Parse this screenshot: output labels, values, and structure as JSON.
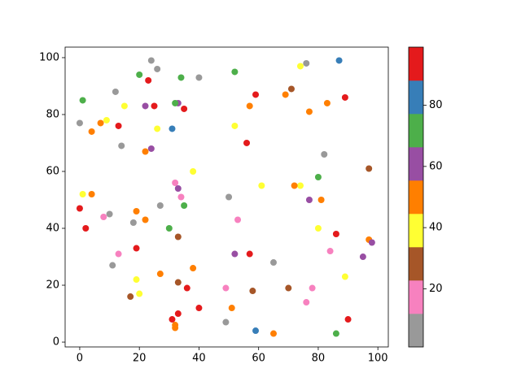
{
  "chart_data": {
    "type": "scatter",
    "x": [
      24,
      26,
      40,
      76,
      12,
      0,
      14,
      82,
      27,
      10,
      18,
      50,
      11,
      65,
      49,
      32,
      34,
      8,
      53,
      13,
      49,
      78,
      76,
      84,
      71,
      97,
      33,
      33,
      17,
      58,
      70,
      74,
      15,
      26,
      52,
      9,
      38,
      61,
      74,
      1,
      80,
      19,
      20,
      89,
      69,
      57,
      77,
      83,
      7,
      4,
      22,
      72,
      4,
      81,
      19,
      22,
      97,
      38,
      27,
      32,
      32,
      51,
      65,
      22,
      33,
      24,
      33,
      77,
      52,
      95,
      98,
      1,
      20,
      34,
      52,
      32,
      80,
      35,
      30,
      86,
      87,
      31,
      59,
      23,
      59,
      89,
      25,
      35,
      13,
      56,
      0,
      2,
      86,
      19,
      57,
      36,
      40,
      33,
      31,
      90
    ],
    "y": [
      99,
      96,
      93,
      98,
      88,
      77,
      69,
      66,
      48,
      45,
      42,
      51,
      27,
      28,
      7,
      56,
      51,
      44,
      43,
      31,
      19,
      19,
      14,
      32,
      89,
      61,
      37,
      21,
      16,
      18,
      19,
      97,
      83,
      75,
      76,
      78,
      60,
      55,
      55,
      52,
      40,
      22,
      17,
      23,
      87,
      83,
      81,
      84,
      77,
      74,
      67,
      55,
      52,
      50,
      46,
      43,
      36,
      26,
      24,
      6,
      5,
      12,
      3,
      83,
      84,
      68,
      54,
      50,
      31,
      30,
      35,
      85,
      94,
      93,
      95,
      84,
      58,
      48,
      40,
      3,
      99,
      75,
      4,
      92,
      87,
      86,
      83,
      82,
      76,
      70,
      47,
      40,
      38,
      33,
      31,
      19,
      12,
      10,
      8,
      8
    ],
    "c": [
      6,
      6,
      6,
      6,
      6,
      6,
      6,
      6,
      6,
      6,
      6,
      6,
      6,
      6,
      6,
      17,
      17,
      17,
      17,
      17,
      17,
      17,
      17,
      17,
      28,
      28,
      28,
      28,
      28,
      28,
      28,
      39,
      39,
      39,
      39,
      39,
      39,
      39,
      39,
      39,
      39,
      39,
      39,
      39,
      50,
      50,
      50,
      50,
      50,
      50,
      50,
      50,
      50,
      50,
      50,
      50,
      50,
      50,
      50,
      50,
      50,
      50,
      50,
      61,
      61,
      61,
      61,
      61,
      61,
      61,
      61,
      72,
      72,
      72,
      72,
      72,
      72,
      72,
      72,
      72,
      83,
      83,
      83,
      94,
      94,
      94,
      94,
      94,
      94,
      94,
      94,
      94,
      94,
      94,
      94,
      94,
      94,
      94,
      94,
      94
    ],
    "xlim": [
      -4.9,
      103.5
    ],
    "ylim": [
      -1.7,
      103.7
    ],
    "xticks": [
      0,
      20,
      40,
      60,
      80,
      100
    ],
    "yticks": [
      0,
      20,
      40,
      60,
      80,
      100
    ],
    "colormap": [
      "#999999",
      "#f781bf",
      "#a65628",
      "#ffff33",
      "#ff7f00",
      "#984ea3",
      "#4daf4a",
      "#377eb8",
      "#e41a1c"
    ],
    "clim": [
      1,
      99
    ],
    "colorbar_ticks": [
      20,
      40,
      60,
      80
    ]
  }
}
